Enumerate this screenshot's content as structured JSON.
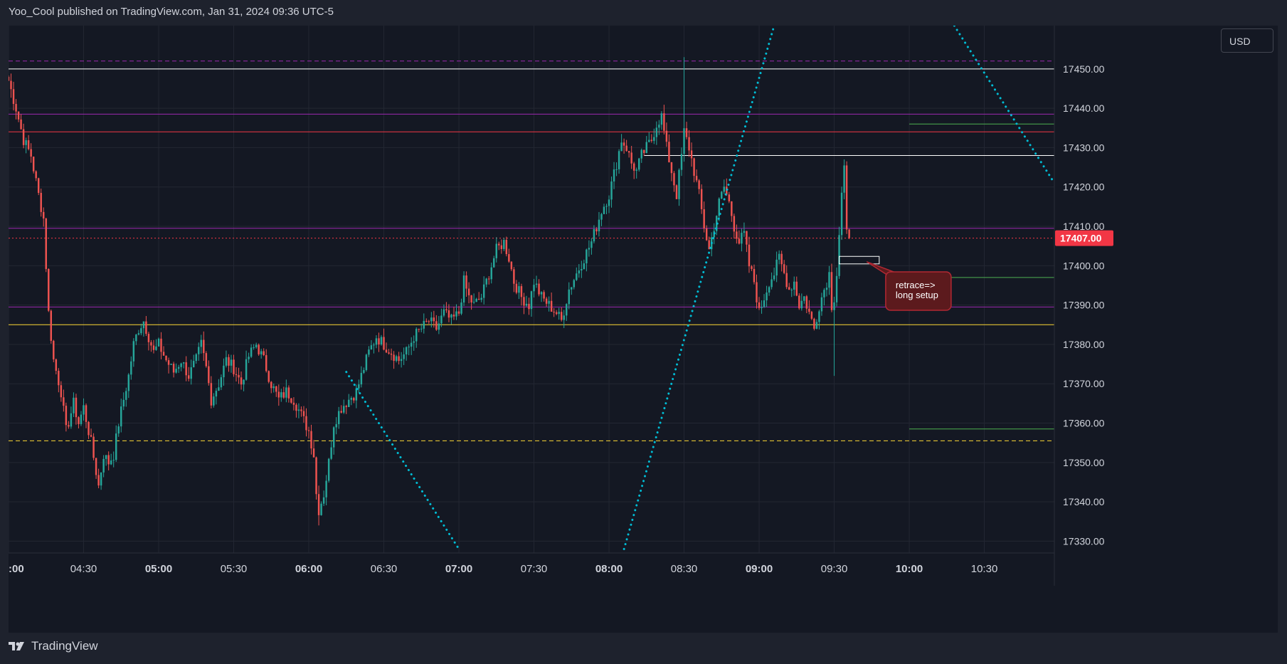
{
  "header": {
    "publisher_line": "Yoo_Cool published on TradingView.com, Jan 31, 2024 09:36 UTC-5"
  },
  "currency_button": {
    "label": "USD"
  },
  "footer": {
    "brand": "TradingView",
    "logo_icon": "tradingview-logo-icon"
  },
  "colors": {
    "background": "#1e222d",
    "pane": "#141823",
    "grid": "#232733",
    "up": "#26a69a",
    "down": "#ef5350",
    "price_tag": "#f23645",
    "cyan": "#00bcd4",
    "purple": "#9c27b0",
    "yellow": "#fdd835",
    "white": "#ffffff",
    "green": "#4caf50",
    "red_line": "#f23645"
  },
  "chart_data": {
    "type": "candlestick",
    "symbol_currency": "USD",
    "x_type": "time",
    "x_ticks": [
      ":00",
      "04:30",
      "05:00",
      "05:30",
      "06:00",
      "06:30",
      "07:00",
      "07:30",
      "08:00",
      "08:30",
      "09:00",
      "09:30",
      "10:00",
      "10:30"
    ],
    "x_ticks_bold": [
      ":00",
      "05:00",
      "06:00",
      "07:00",
      "08:00",
      "09:00",
      "10:00"
    ],
    "xlim": [
      "04:00",
      "10:58"
    ],
    "y_ticks": [
      17330,
      17340,
      17350,
      17360,
      17370,
      17380,
      17390,
      17400,
      17410,
      17420,
      17430,
      17440,
      17450
    ],
    "ylim": [
      17327,
      17461
    ],
    "last_price": {
      "value": 17407.0,
      "label": "17407.00"
    },
    "grid": true,
    "series": [
      {
        "granularity": "1 minute",
        "anchors": [
          [
            "04:00",
            17447
          ],
          [
            "04:03",
            17440
          ],
          [
            "04:06",
            17432
          ],
          [
            "04:09",
            17428
          ],
          [
            "04:12",
            17418
          ],
          [
            "04:14",
            17412
          ],
          [
            "04:16",
            17388
          ],
          [
            "04:18",
            17376
          ],
          [
            "04:21",
            17368
          ],
          [
            "04:23",
            17358
          ],
          [
            "04:26",
            17365
          ],
          [
            "04:28",
            17360
          ],
          [
            "04:30",
            17364
          ],
          [
            "04:33",
            17355
          ],
          [
            "04:36",
            17344
          ],
          [
            "04:38",
            17352
          ],
          [
            "04:40",
            17350
          ],
          [
            "04:42",
            17352
          ],
          [
            "04:44",
            17360
          ],
          [
            "04:46",
            17366
          ],
          [
            "04:48",
            17372
          ],
          [
            "04:50",
            17380
          ],
          [
            "04:52",
            17384
          ],
          [
            "04:54",
            17386
          ],
          [
            "04:56",
            17382
          ],
          [
            "04:58",
            17378
          ],
          [
            "05:00",
            17380
          ],
          [
            "05:03",
            17376
          ],
          [
            "05:06",
            17373
          ],
          [
            "05:09",
            17376
          ],
          [
            "05:12",
            17372
          ],
          [
            "05:15",
            17376
          ],
          [
            "05:17",
            17380
          ],
          [
            "05:19",
            17374
          ],
          [
            "05:21",
            17366
          ],
          [
            "05:24",
            17370
          ],
          [
            "05:27",
            17376
          ],
          [
            "05:30",
            17374
          ],
          [
            "05:33",
            17370
          ],
          [
            "05:36",
            17377
          ],
          [
            "05:39",
            17380
          ],
          [
            "05:42",
            17376
          ],
          [
            "05:45",
            17370
          ],
          [
            "05:48",
            17366
          ],
          [
            "05:51",
            17368
          ],
          [
            "05:54",
            17366
          ],
          [
            "05:57",
            17362
          ],
          [
            "06:00",
            17358
          ],
          [
            "06:02",
            17352
          ],
          [
            "06:03",
            17342
          ],
          [
            "06:04",
            17338
          ],
          [
            "06:06",
            17342
          ],
          [
            "06:08",
            17350
          ],
          [
            "06:10",
            17360
          ],
          [
            "06:13",
            17364
          ],
          [
            "06:16",
            17366
          ],
          [
            "06:19",
            17368
          ],
          [
            "06:21",
            17372
          ],
          [
            "06:24",
            17378
          ],
          [
            "06:27",
            17382
          ],
          [
            "06:30",
            17380
          ],
          [
            "06:33",
            17378
          ],
          [
            "06:36",
            17376
          ],
          [
            "06:39",
            17378
          ],
          [
            "06:42",
            17382
          ],
          [
            "06:45",
            17384
          ],
          [
            "06:48",
            17386
          ],
          [
            "06:51",
            17384
          ],
          [
            "06:54",
            17388
          ],
          [
            "06:57",
            17386
          ],
          [
            "07:00",
            17388
          ],
          [
            "07:02",
            17396
          ],
          [
            "07:04",
            17392
          ],
          [
            "07:06",
            17390
          ],
          [
            "07:09",
            17392
          ],
          [
            "07:12",
            17398
          ],
          [
            "07:15",
            17404
          ],
          [
            "07:18",
            17406
          ],
          [
            "07:20",
            17402
          ],
          [
            "07:22",
            17396
          ],
          [
            "07:25",
            17392
          ],
          [
            "07:28",
            17390
          ],
          [
            "07:30",
            17396
          ],
          [
            "07:33",
            17392
          ],
          [
            "07:36",
            17390
          ],
          [
            "07:39",
            17388
          ],
          [
            "07:41",
            17386
          ],
          [
            "07:44",
            17394
          ],
          [
            "07:47",
            17398
          ],
          [
            "07:50",
            17402
          ],
          [
            "07:53",
            17406
          ],
          [
            "07:55",
            17410
          ],
          [
            "07:57",
            17414
          ],
          [
            "08:00",
            17418
          ],
          [
            "08:03",
            17426
          ],
          [
            "08:05",
            17432
          ],
          [
            "08:07",
            17430
          ],
          [
            "08:09",
            17426
          ],
          [
            "08:11",
            17424
          ],
          [
            "08:13",
            17428
          ],
          [
            "08:15",
            17430
          ],
          [
            "08:17",
            17432
          ],
          [
            "08:19",
            17436
          ],
          [
            "08:21",
            17438
          ],
          [
            "08:23",
            17430
          ],
          [
            "08:25",
            17424
          ],
          [
            "08:27",
            17418
          ],
          [
            "08:29",
            17428
          ],
          [
            "08:30",
            17434
          ],
          [
            "08:32",
            17430
          ],
          [
            "08:34",
            17424
          ],
          [
            "08:36",
            17418
          ],
          [
            "08:38",
            17410
          ],
          [
            "08:40",
            17404
          ],
          [
            "08:42",
            17410
          ],
          [
            "08:44",
            17416
          ],
          [
            "08:46",
            17420
          ],
          [
            "08:48",
            17416
          ],
          [
            "08:50",
            17410
          ],
          [
            "08:52",
            17406
          ],
          [
            "08:54",
            17408
          ],
          [
            "08:56",
            17400
          ],
          [
            "08:58",
            17396
          ],
          [
            "09:00",
            17388
          ],
          [
            "09:02",
            17392
          ],
          [
            "09:04",
            17396
          ],
          [
            "09:06",
            17398
          ],
          [
            "09:08",
            17402
          ],
          [
            "09:10",
            17398
          ],
          [
            "09:12",
            17394
          ],
          [
            "09:14",
            17396
          ],
          [
            "09:16",
            17390
          ],
          [
            "09:18",
            17392
          ],
          [
            "09:20",
            17388
          ],
          [
            "09:22",
            17384
          ],
          [
            "09:24",
            17390
          ],
          [
            "09:26",
            17394
          ],
          [
            "09:28",
            17398
          ],
          [
            "09:29",
            17390
          ],
          [
            "09:30",
            17392
          ],
          [
            "09:31",
            17398
          ],
          [
            "09:32",
            17408
          ],
          [
            "09:33",
            17418
          ],
          [
            "09:34",
            17424
          ],
          [
            "09:35",
            17408
          ],
          [
            "09:36",
            17407
          ]
        ],
        "key_extremes": {
          "session_high": [
            "08:30",
            17453
          ],
          "session_low": [
            "06:04",
            17334
          ],
          "late_low": [
            "09:30",
            17372
          ]
        }
      }
    ],
    "horizontal_levels": [
      {
        "price": 17452,
        "color": "#9c27b0",
        "style": "dashed",
        "start": "04:00"
      },
      {
        "price": 17450,
        "color": "#ffffff",
        "style": "solid",
        "start": "04:00"
      },
      {
        "price": 17438.5,
        "color": "#9c27b0",
        "style": "solid",
        "start": "04:00"
      },
      {
        "price": 17434,
        "color": "#f23645",
        "style": "solid",
        "start": "04:00"
      },
      {
        "price": 17436,
        "color": "#4caf50",
        "style": "solid",
        "start": "10:00"
      },
      {
        "price": 17428,
        "color": "#ffffff",
        "style": "solid",
        "start": "08:14"
      },
      {
        "price": 17409.5,
        "color": "#9c27b0",
        "style": "solid",
        "start": "04:00"
      },
      {
        "price": 17407,
        "color": "#f23645",
        "style": "dotted",
        "start": "04:00"
      },
      {
        "price": 17397,
        "color": "#4caf50",
        "style": "solid",
        "start": "10:00"
      },
      {
        "price": 17389.5,
        "color": "#9c27b0",
        "style": "solid",
        "start": "04:00"
      },
      {
        "price": 17385,
        "color": "#fdd835",
        "style": "solid",
        "start": "04:00"
      },
      {
        "price": 17358.5,
        "color": "#4caf50",
        "style": "solid",
        "start": "10:00"
      },
      {
        "price": 17355.5,
        "color": "#fdd835",
        "style": "dashed",
        "start": "04:00"
      }
    ],
    "trend_lines": [
      {
        "from": [
          "06:15",
          17373
        ],
        "to": [
          "07:00",
          17328
        ],
        "color": "#00bcd4",
        "style": "dotted"
      },
      {
        "from": [
          "08:06",
          17328
        ],
        "to": [
          "09:06",
          17461
        ],
        "color": "#00bcd4",
        "style": "dotted"
      },
      {
        "from": [
          "10:18",
          17461
        ],
        "to": [
          "10:58",
          17421
        ],
        "color": "#00bcd4",
        "style": "dotted"
      }
    ],
    "rectangles": [
      {
        "from": [
          "09:32",
          17402
        ],
        "to": [
          "09:48",
          17401
        ],
        "color": "#ffffff"
      }
    ],
    "annotations": [
      {
        "text": "retrace=>\nlong setup",
        "anchor": [
          "09:43",
          17401
        ],
        "box_at": [
          "09:52",
          17393
        ]
      }
    ]
  }
}
